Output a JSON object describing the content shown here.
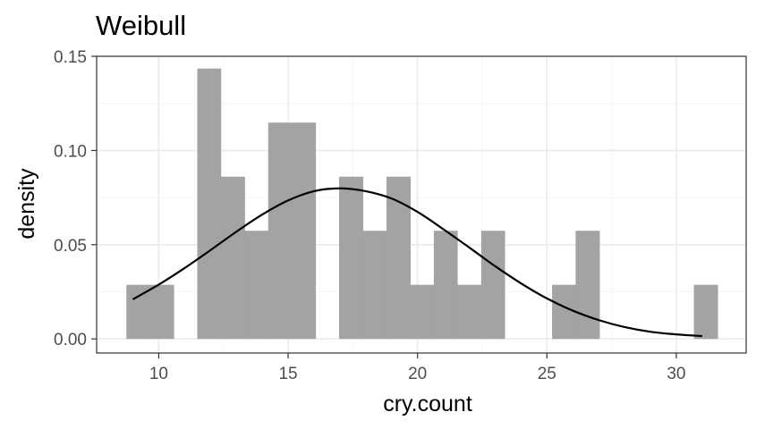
{
  "chart_data": {
    "type": "histogram",
    "title": "Weibull",
    "xlabel": "cry.count",
    "ylabel": "density",
    "xlim": [
      7.6,
      32.7
    ],
    "ylim": [
      -0.0075,
      0.15
    ],
    "x_ticks": [
      10,
      15,
      20,
      25,
      30
    ],
    "x_tick_labels": [
      "10",
      "15",
      "20",
      "25",
      "30"
    ],
    "y_ticks": [
      0,
      0.05,
      0.1,
      0.15
    ],
    "y_tick_labels": [
      "0.00",
      "0.05",
      "0.10",
      "0.15"
    ],
    "grid": true,
    "legend": "none",
    "bin_width": 0.914,
    "bins": [
      {
        "x0": 8.75,
        "x1": 9.66,
        "density": 0.0287
      },
      {
        "x0": 9.66,
        "x1": 10.58,
        "density": 0.0287
      },
      {
        "x0": 10.58,
        "x1": 11.49,
        "density": 0
      },
      {
        "x0": 11.49,
        "x1": 12.4,
        "density": 0.1435
      },
      {
        "x0": 12.4,
        "x1": 13.32,
        "density": 0.0861
      },
      {
        "x0": 13.32,
        "x1": 14.23,
        "density": 0.0574
      },
      {
        "x0": 14.23,
        "x1": 15.15,
        "density": 0.1148
      },
      {
        "x0": 15.15,
        "x1": 16.06,
        "density": 0.1148
      },
      {
        "x0": 16.06,
        "x1": 16.97,
        "density": 0
      },
      {
        "x0": 16.97,
        "x1": 17.89,
        "density": 0.0861
      },
      {
        "x0": 17.89,
        "x1": 18.8,
        "density": 0.0574
      },
      {
        "x0": 18.8,
        "x1": 19.72,
        "density": 0.0861
      },
      {
        "x0": 19.72,
        "x1": 20.63,
        "density": 0.0287
      },
      {
        "x0": 20.63,
        "x1": 21.54,
        "density": 0.0574
      },
      {
        "x0": 21.54,
        "x1": 22.46,
        "density": 0.0287
      },
      {
        "x0": 22.46,
        "x1": 23.37,
        "density": 0.0574
      },
      {
        "x0": 23.37,
        "x1": 24.29,
        "density": 0
      },
      {
        "x0": 24.29,
        "x1": 25.2,
        "density": 0
      },
      {
        "x0": 25.2,
        "x1": 26.11,
        "density": 0.0287
      },
      {
        "x0": 26.11,
        "x1": 27.03,
        "density": 0.0574
      },
      {
        "x0": 27.03,
        "x1": 27.94,
        "density": 0
      },
      {
        "x0": 27.94,
        "x1": 28.86,
        "density": 0
      },
      {
        "x0": 28.86,
        "x1": 29.77,
        "density": 0
      },
      {
        "x0": 29.77,
        "x1": 30.68,
        "density": 0
      },
      {
        "x0": 30.68,
        "x1": 31.6,
        "density": 0.0287
      }
    ],
    "fit_curve": {
      "distribution": "Weibull",
      "x": [
        9,
        10,
        11,
        12,
        13,
        14,
        15,
        16,
        17,
        18,
        19,
        20,
        21,
        22,
        23,
        24,
        25,
        26,
        27,
        28,
        29,
        30,
        31
      ],
      "y": [
        0.021,
        0.0288,
        0.0376,
        0.0471,
        0.0569,
        0.066,
        0.0735,
        0.0784,
        0.0799,
        0.0784,
        0.0745,
        0.0674,
        0.0582,
        0.0485,
        0.0386,
        0.0295,
        0.0215,
        0.015,
        0.01,
        0.0063,
        0.0038,
        0.0024,
        0.0015
      ]
    },
    "colors": {
      "bar": "#a3a3a3",
      "curve": "#000000",
      "grid_major": "#ebebeb",
      "grid_minor": "#f5f5f5",
      "panel_border": "#333333",
      "tick_label": "#4d4d4d"
    }
  }
}
